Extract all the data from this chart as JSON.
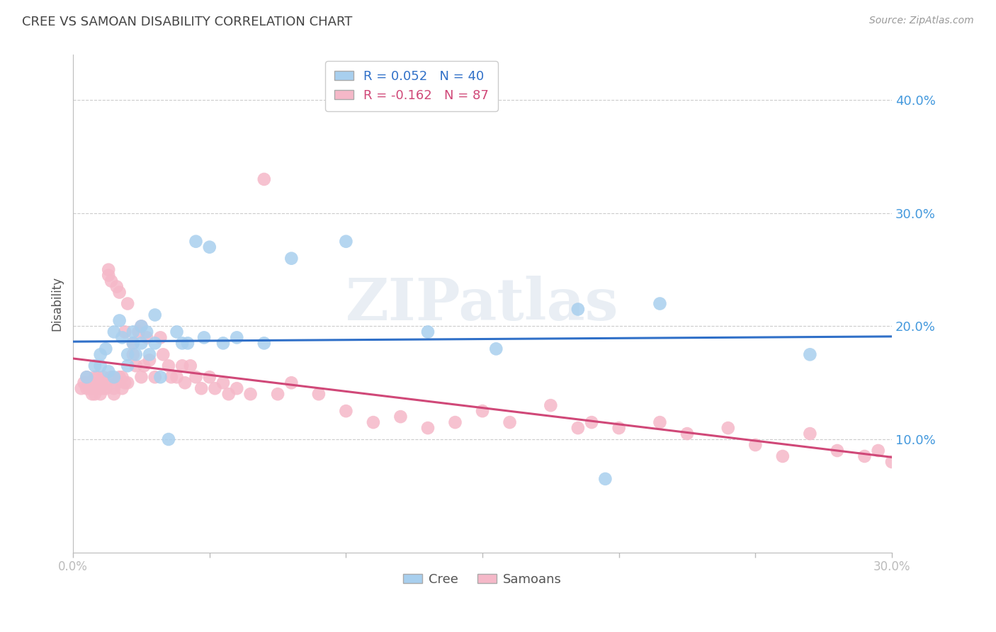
{
  "title": "CREE VS SAMOAN DISABILITY CORRELATION CHART",
  "source": "Source: ZipAtlas.com",
  "ylabel": "Disability",
  "xlim": [
    0.0,
    0.3
  ],
  "ylim": [
    0.0,
    0.44
  ],
  "yticks": [
    0.1,
    0.2,
    0.3,
    0.4
  ],
  "ytick_labels": [
    "10.0%",
    "20.0%",
    "30.0%",
    "40.0%"
  ],
  "xticks": [
    0.0,
    0.05,
    0.1,
    0.15,
    0.2,
    0.25,
    0.3
  ],
  "xtick_labels": [
    "0.0%",
    "",
    "",
    "",
    "",
    "",
    "30.0%"
  ],
  "cree_color": "#A8CFEE",
  "samoan_color": "#F5B8C8",
  "cree_line_color": "#3070C8",
  "samoan_line_color": "#D04878",
  "R_cree": 0.052,
  "N_cree": 40,
  "R_samoan": -0.162,
  "N_samoan": 87,
  "watermark": "ZIPatlas",
  "background_color": "#FFFFFF",
  "cree_scatter_x": [
    0.005,
    0.008,
    0.01,
    0.01,
    0.012,
    0.013,
    0.015,
    0.015,
    0.017,
    0.018,
    0.02,
    0.02,
    0.022,
    0.022,
    0.023,
    0.025,
    0.025,
    0.027,
    0.028,
    0.03,
    0.03,
    0.032,
    0.035,
    0.038,
    0.04,
    0.042,
    0.045,
    0.048,
    0.05,
    0.055,
    0.06,
    0.07,
    0.08,
    0.1,
    0.13,
    0.155,
    0.185,
    0.195,
    0.215,
    0.27
  ],
  "cree_scatter_y": [
    0.155,
    0.165,
    0.175,
    0.165,
    0.18,
    0.16,
    0.155,
    0.195,
    0.205,
    0.19,
    0.175,
    0.165,
    0.195,
    0.185,
    0.175,
    0.2,
    0.185,
    0.195,
    0.175,
    0.21,
    0.185,
    0.155,
    0.1,
    0.195,
    0.185,
    0.185,
    0.275,
    0.19,
    0.27,
    0.185,
    0.19,
    0.185,
    0.26,
    0.275,
    0.195,
    0.18,
    0.215,
    0.065,
    0.22,
    0.175
  ],
  "samoan_scatter_x": [
    0.003,
    0.004,
    0.005,
    0.005,
    0.006,
    0.006,
    0.007,
    0.007,
    0.008,
    0.008,
    0.008,
    0.009,
    0.009,
    0.01,
    0.01,
    0.01,
    0.011,
    0.011,
    0.012,
    0.012,
    0.013,
    0.013,
    0.014,
    0.014,
    0.015,
    0.015,
    0.016,
    0.016,
    0.017,
    0.017,
    0.018,
    0.018,
    0.019,
    0.019,
    0.02,
    0.02,
    0.022,
    0.022,
    0.023,
    0.024,
    0.025,
    0.025,
    0.026,
    0.027,
    0.028,
    0.03,
    0.032,
    0.033,
    0.035,
    0.036,
    0.038,
    0.04,
    0.041,
    0.043,
    0.045,
    0.047,
    0.05,
    0.052,
    0.055,
    0.057,
    0.06,
    0.065,
    0.07,
    0.075,
    0.08,
    0.09,
    0.1,
    0.11,
    0.12,
    0.13,
    0.14,
    0.15,
    0.16,
    0.175,
    0.185,
    0.19,
    0.2,
    0.215,
    0.225,
    0.24,
    0.25,
    0.26,
    0.27,
    0.28,
    0.29,
    0.295,
    0.3
  ],
  "samoan_scatter_y": [
    0.145,
    0.15,
    0.145,
    0.155,
    0.145,
    0.15,
    0.14,
    0.15,
    0.145,
    0.14,
    0.155,
    0.145,
    0.155,
    0.145,
    0.14,
    0.15,
    0.145,
    0.155,
    0.145,
    0.15,
    0.245,
    0.25,
    0.24,
    0.155,
    0.145,
    0.14,
    0.235,
    0.15,
    0.155,
    0.23,
    0.155,
    0.145,
    0.195,
    0.15,
    0.22,
    0.15,
    0.185,
    0.175,
    0.165,
    0.195,
    0.155,
    0.2,
    0.165,
    0.19,
    0.17,
    0.155,
    0.19,
    0.175,
    0.165,
    0.155,
    0.155,
    0.165,
    0.15,
    0.165,
    0.155,
    0.145,
    0.155,
    0.145,
    0.15,
    0.14,
    0.145,
    0.14,
    0.33,
    0.14,
    0.15,
    0.14,
    0.125,
    0.115,
    0.12,
    0.11,
    0.115,
    0.125,
    0.115,
    0.13,
    0.11,
    0.115,
    0.11,
    0.115,
    0.105,
    0.11,
    0.095,
    0.085,
    0.105,
    0.09,
    0.085,
    0.09,
    0.08
  ]
}
